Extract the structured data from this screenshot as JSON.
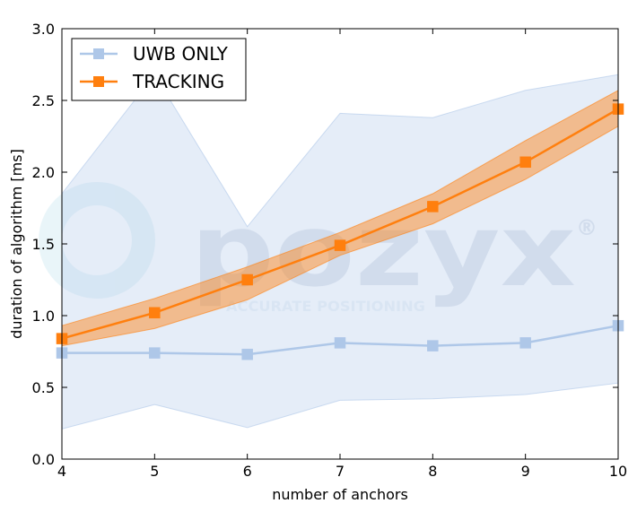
{
  "chart_data": {
    "type": "line",
    "x": [
      4,
      5,
      6,
      7,
      8,
      9,
      10
    ],
    "xlim": [
      4,
      10
    ],
    "ylim": [
      0,
      3
    ],
    "xticks": [
      "4",
      "5",
      "6",
      "7",
      "8",
      "9",
      "10"
    ],
    "yticks": [
      "0.0",
      "0.5",
      "1.0",
      "1.5",
      "2.0",
      "2.5",
      "3.0"
    ],
    "xlabel": "number of anchors",
    "ylabel": "duration of algorithm [ms]",
    "legend_position": "top-left",
    "grid": false,
    "series": [
      {
        "name": "UWB ONLY",
        "color": "#aec7e8",
        "marker": "square",
        "values": [
          0.74,
          0.74,
          0.73,
          0.81,
          0.79,
          0.81,
          0.93
        ],
        "band_lower": [
          0.21,
          0.38,
          0.22,
          0.41,
          0.42,
          0.45,
          0.53
        ],
        "band_upper": [
          1.85,
          2.68,
          1.62,
          2.41,
          2.38,
          2.57,
          2.68
        ]
      },
      {
        "name": "TRACKING",
        "color": "#ff7f0e",
        "marker": "square",
        "values": [
          0.84,
          1.02,
          1.25,
          1.49,
          1.76,
          2.07,
          2.44
        ],
        "band_lower": [
          0.79,
          0.91,
          1.11,
          1.42,
          1.64,
          1.95,
          2.32
        ],
        "band_upper": [
          0.93,
          1.12,
          1.34,
          1.58,
          1.85,
          2.22,
          2.57
        ]
      }
    ]
  },
  "watermark": {
    "brand": "pozyx",
    "registered": "®",
    "tagline": "ACCURATE POSITIONING",
    "color": "#8a9fbf"
  }
}
